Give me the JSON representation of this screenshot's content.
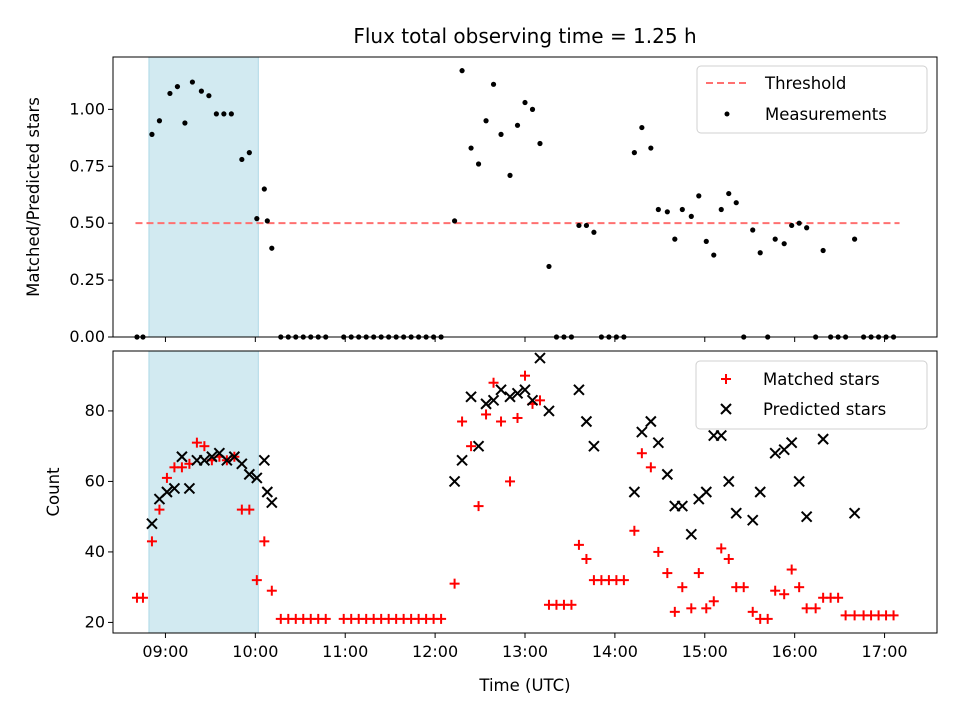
{
  "chart_data": [
    {
      "type": "scatter",
      "title": "Flux total observing time = 1.25 h",
      "xlabel": "",
      "ylabel": "Matched/Predicted stars",
      "xlim": [
        "08:25",
        "17:35"
      ],
      "ylim": [
        0,
        1.23
      ],
      "yticks": [
        0.0,
        0.25,
        0.5,
        0.75,
        1.0
      ],
      "ytick_labels": [
        "0.00",
        "0.25",
        "0.50",
        "0.75",
        "1.00"
      ],
      "highlight_span": [
        "08:49",
        "10:02"
      ],
      "highlight_color": "#add8e6",
      "grid": false,
      "legend_position": "top-right",
      "threshold": {
        "name": "Threshold",
        "y": 0.5,
        "x_range": [
          "08:40",
          "17:10"
        ],
        "color": "#ff7070",
        "style": "dashed"
      },
      "series": [
        {
          "name": "Measurements",
          "color": "#000000",
          "marker": "dot",
          "points": [
            [
              "08:41",
              0.0
            ],
            [
              "08:45",
              0.0
            ],
            [
              "08:51",
              0.89
            ],
            [
              "08:56",
              0.95
            ],
            [
              "09:03",
              1.07
            ],
            [
              "09:08",
              1.1
            ],
            [
              "09:13",
              0.94
            ],
            [
              "09:18",
              1.12
            ],
            [
              "09:24",
              1.08
            ],
            [
              "09:29",
              1.06
            ],
            [
              "09:34",
              0.98
            ],
            [
              "09:39",
              0.98
            ],
            [
              "09:44",
              0.98
            ],
            [
              "09:51",
              0.78
            ],
            [
              "09:56",
              0.81
            ],
            [
              "10:01",
              0.52
            ],
            [
              "10:06",
              0.65
            ],
            [
              "10:08",
              0.51
            ],
            [
              "10:11",
              0.39
            ],
            [
              "10:17",
              0.0
            ],
            [
              "10:22",
              0.0
            ],
            [
              "10:27",
              0.0
            ],
            [
              "10:32",
              0.0
            ],
            [
              "10:37",
              0.0
            ],
            [
              "10:42",
              0.0
            ],
            [
              "10:47",
              0.0
            ],
            [
              "10:59",
              0.0
            ],
            [
              "11:04",
              0.0
            ],
            [
              "11:09",
              0.0
            ],
            [
              "11:14",
              0.0
            ],
            [
              "11:19",
              0.0
            ],
            [
              "11:24",
              0.0
            ],
            [
              "11:29",
              0.0
            ],
            [
              "11:34",
              0.0
            ],
            [
              "11:39",
              0.0
            ],
            [
              "11:44",
              0.0
            ],
            [
              "11:49",
              0.0
            ],
            [
              "11:54",
              0.0
            ],
            [
              "11:59",
              0.0
            ],
            [
              "12:04",
              0.0
            ],
            [
              "12:13",
              0.51
            ],
            [
              "12:18",
              1.17
            ],
            [
              "12:24",
              0.83
            ],
            [
              "12:29",
              0.76
            ],
            [
              "12:34",
              0.95
            ],
            [
              "12:39",
              1.11
            ],
            [
              "12:44",
              0.89
            ],
            [
              "12:50",
              0.71
            ],
            [
              "12:55",
              0.93
            ],
            [
              "13:00",
              1.03
            ],
            [
              "13:05",
              1.0
            ],
            [
              "13:10",
              0.85
            ],
            [
              "13:16",
              0.31
            ],
            [
              "13:21",
              0.0
            ],
            [
              "13:26",
              0.0
            ],
            [
              "13:31",
              0.0
            ],
            [
              "13:36",
              0.49
            ],
            [
              "13:41",
              0.49
            ],
            [
              "13:46",
              0.46
            ],
            [
              "13:51",
              0.0
            ],
            [
              "13:56",
              0.0
            ],
            [
              "14:01",
              0.0
            ],
            [
              "14:06",
              0.0
            ],
            [
              "14:13",
              0.81
            ],
            [
              "14:18",
              0.92
            ],
            [
              "14:24",
              0.83
            ],
            [
              "14:29",
              0.56
            ],
            [
              "14:35",
              0.55
            ],
            [
              "14:40",
              0.43
            ],
            [
              "14:45",
              0.56
            ],
            [
              "14:51",
              0.53
            ],
            [
              "14:56",
              0.62
            ],
            [
              "15:01",
              0.42
            ],
            [
              "15:06",
              0.36
            ],
            [
              "15:11",
              0.56
            ],
            [
              "15:16",
              0.63
            ],
            [
              "15:21",
              0.59
            ],
            [
              "15:26",
              0.0
            ],
            [
              "15:32",
              0.47
            ],
            [
              "15:37",
              0.37
            ],
            [
              "15:42",
              0.0
            ],
            [
              "15:47",
              0.43
            ],
            [
              "15:53",
              0.41
            ],
            [
              "15:58",
              0.49
            ],
            [
              "16:03",
              0.5
            ],
            [
              "16:08",
              0.48
            ],
            [
              "16:14",
              0.0
            ],
            [
              "16:19",
              0.38
            ],
            [
              "16:24",
              0.0
            ],
            [
              "16:29",
              0.0
            ],
            [
              "16:34",
              0.0
            ],
            [
              "16:40",
              0.43
            ],
            [
              "16:46",
              0.0
            ],
            [
              "16:51",
              0.0
            ],
            [
              "16:56",
              0.0
            ],
            [
              "17:01",
              0.0
            ],
            [
              "17:06",
              0.0
            ]
          ]
        }
      ]
    },
    {
      "type": "scatter",
      "title": "",
      "xlabel": "Time (UTC)",
      "ylabel": "Count",
      "xlim": [
        "08:25",
        "17:35"
      ],
      "ylim": [
        17,
        97
      ],
      "yticks": [
        20,
        40,
        60,
        80
      ],
      "ytick_labels": [
        "20",
        "40",
        "60",
        "80"
      ],
      "xticks": [
        "09:00",
        "10:00",
        "11:00",
        "12:00",
        "13:00",
        "14:00",
        "15:00",
        "16:00",
        "17:00"
      ],
      "xtick_labels": [
        "09:00",
        "10:00",
        "11:00",
        "12:00",
        "13:00",
        "14:00",
        "15:00",
        "16:00",
        "17:00"
      ],
      "highlight_span": [
        "08:49",
        "10:02"
      ],
      "highlight_color": "#add8e6",
      "grid": false,
      "legend_position": "top-right",
      "series": [
        {
          "name": "Matched stars",
          "color": "#ff0000",
          "marker": "plus",
          "points": [
            [
              "08:41",
              27
            ],
            [
              "08:45",
              27
            ],
            [
              "08:51",
              43
            ],
            [
              "08:56",
              52
            ],
            [
              "09:01",
              61
            ],
            [
              "09:06",
              64
            ],
            [
              "09:11",
              64
            ],
            [
              "09:16",
              65
            ],
            [
              "09:21",
              71
            ],
            [
              "09:26",
              70
            ],
            [
              "09:31",
              66
            ],
            [
              "09:36",
              67
            ],
            [
              "09:41",
              66
            ],
            [
              "09:46",
              67
            ],
            [
              "09:51",
              52
            ],
            [
              "09:56",
              52
            ],
            [
              "10:01",
              32
            ],
            [
              "10:06",
              43
            ],
            [
              "10:11",
              29
            ],
            [
              "10:17",
              21
            ],
            [
              "10:22",
              21
            ],
            [
              "10:27",
              21
            ],
            [
              "10:32",
              21
            ],
            [
              "10:37",
              21
            ],
            [
              "10:42",
              21
            ],
            [
              "10:47",
              21
            ],
            [
              "10:59",
              21
            ],
            [
              "11:04",
              21
            ],
            [
              "11:09",
              21
            ],
            [
              "11:14",
              21
            ],
            [
              "11:19",
              21
            ],
            [
              "11:24",
              21
            ],
            [
              "11:29",
              21
            ],
            [
              "11:34",
              21
            ],
            [
              "11:39",
              21
            ],
            [
              "11:44",
              21
            ],
            [
              "11:49",
              21
            ],
            [
              "11:54",
              21
            ],
            [
              "11:59",
              21
            ],
            [
              "12:04",
              21
            ],
            [
              "12:13",
              31
            ],
            [
              "12:18",
              77
            ],
            [
              "12:24",
              70
            ],
            [
              "12:29",
              53
            ],
            [
              "12:34",
              79
            ],
            [
              "12:39",
              88
            ],
            [
              "12:44",
              77
            ],
            [
              "12:50",
              60
            ],
            [
              "12:55",
              78
            ],
            [
              "13:00",
              90
            ],
            [
              "13:05",
              82
            ],
            [
              "13:10",
              83
            ],
            [
              "13:16",
              25
            ],
            [
              "13:21",
              25
            ],
            [
              "13:26",
              25
            ],
            [
              "13:31",
              25
            ],
            [
              "13:36",
              42
            ],
            [
              "13:41",
              38
            ],
            [
              "13:46",
              32
            ],
            [
              "13:51",
              32
            ],
            [
              "13:56",
              32
            ],
            [
              "14:01",
              32
            ],
            [
              "14:06",
              32
            ],
            [
              "14:13",
              46
            ],
            [
              "14:18",
              68
            ],
            [
              "14:24",
              64
            ],
            [
              "14:29",
              40
            ],
            [
              "14:35",
              34
            ],
            [
              "14:40",
              23
            ],
            [
              "14:45",
              30
            ],
            [
              "14:51",
              24
            ],
            [
              "14:56",
              34
            ],
            [
              "15:01",
              24
            ],
            [
              "15:06",
              26
            ],
            [
              "15:11",
              41
            ],
            [
              "15:16",
              38
            ],
            [
              "15:21",
              30
            ],
            [
              "15:26",
              30
            ],
            [
              "15:32",
              23
            ],
            [
              "15:37",
              21
            ],
            [
              "15:42",
              21
            ],
            [
              "15:47",
              29
            ],
            [
              "15:53",
              28
            ],
            [
              "15:58",
              35
            ],
            [
              "16:03",
              30
            ],
            [
              "16:08",
              24
            ],
            [
              "16:14",
              24
            ],
            [
              "16:19",
              27
            ],
            [
              "16:24",
              27
            ],
            [
              "16:29",
              27
            ],
            [
              "16:34",
              22
            ],
            [
              "16:40",
              22
            ],
            [
              "16:46",
              22
            ],
            [
              "16:51",
              22
            ],
            [
              "16:56",
              22
            ],
            [
              "17:01",
              22
            ],
            [
              "17:06",
              22
            ]
          ]
        },
        {
          "name": "Predicted stars",
          "color": "#000000",
          "marker": "x",
          "points": [
            [
              "08:51",
              48
            ],
            [
              "08:56",
              55
            ],
            [
              "09:01",
              57
            ],
            [
              "09:06",
              58
            ],
            [
              "09:11",
              67
            ],
            [
              "09:16",
              58
            ],
            [
              "09:21",
              66
            ],
            [
              "09:26",
              66
            ],
            [
              "09:31",
              67
            ],
            [
              "09:36",
              68
            ],
            [
              "09:41",
              66
            ],
            [
              "09:46",
              67
            ],
            [
              "09:51",
              65
            ],
            [
              "09:56",
              62
            ],
            [
              "10:01",
              61
            ],
            [
              "10:06",
              66
            ],
            [
              "10:08",
              57
            ],
            [
              "10:11",
              54
            ],
            [
              "12:13",
              60
            ],
            [
              "12:18",
              66
            ],
            [
              "12:24",
              84
            ],
            [
              "12:29",
              70
            ],
            [
              "12:34",
              82
            ],
            [
              "12:39",
              83
            ],
            [
              "12:44",
              86
            ],
            [
              "12:50",
              84
            ],
            [
              "12:55",
              85
            ],
            [
              "13:00",
              86
            ],
            [
              "13:05",
              83
            ],
            [
              "13:10",
              95
            ],
            [
              "13:16",
              80
            ],
            [
              "13:36",
              86
            ],
            [
              "13:41",
              77
            ],
            [
              "13:46",
              70
            ],
            [
              "14:13",
              57
            ],
            [
              "14:18",
              74
            ],
            [
              "14:24",
              77
            ],
            [
              "14:29",
              71
            ],
            [
              "14:35",
              62
            ],
            [
              "14:40",
              53
            ],
            [
              "14:45",
              53
            ],
            [
              "14:51",
              45
            ],
            [
              "14:56",
              55
            ],
            [
              "15:01",
              57
            ],
            [
              "15:06",
              73
            ],
            [
              "15:11",
              73
            ],
            [
              "15:16",
              60
            ],
            [
              "15:21",
              51
            ],
            [
              "15:32",
              49
            ],
            [
              "15:37",
              57
            ],
            [
              "15:47",
              68
            ],
            [
              "15:53",
              69
            ],
            [
              "15:58",
              71
            ],
            [
              "16:03",
              60
            ],
            [
              "16:08",
              50
            ],
            [
              "16:19",
              72
            ],
            [
              "16:40",
              51
            ]
          ]
        }
      ]
    }
  ]
}
